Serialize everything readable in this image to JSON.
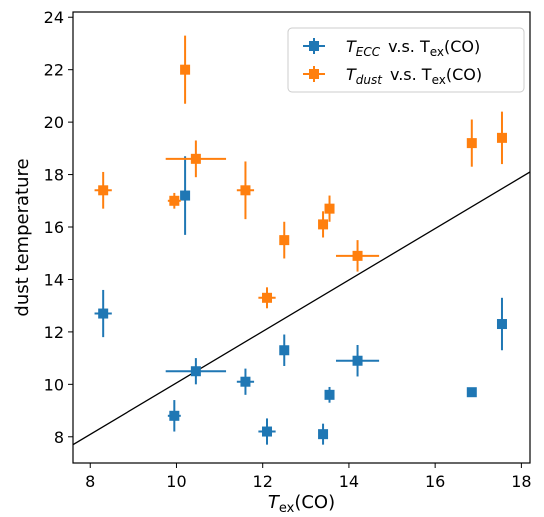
{
  "chart_data": {
    "type": "scatter",
    "xlabel_main": "T",
    "xlabel_sub": "ex",
    "xlabel_tail": "(CO)",
    "ylabel": "dust temperature",
    "xlim": [
      7.6,
      18.2
    ],
    "ylim": [
      7.0,
      24.2
    ],
    "xticks": [
      8,
      10,
      12,
      14,
      16,
      18
    ],
    "yticks": [
      8,
      10,
      12,
      14,
      16,
      18,
      20,
      22,
      24
    ],
    "grid": false,
    "legend_position": "upper-right",
    "reference_line": {
      "points": [
        [
          7.6,
          7.7
        ],
        [
          18.2,
          18.1
        ]
      ],
      "color": "#000000"
    },
    "series": [
      {
        "name": "T_ECC v.s. T_ex(CO)",
        "legend_main": "T",
        "legend_sub": "ECC",
        "legend_tail": "v.s. T",
        "legend_tail_sub": "ex",
        "legend_end": "(CO)",
        "color": "#1f77b4",
        "points": [
          {
            "x": 8.3,
            "y": 12.7,
            "xerr": 0.2,
            "yerr": 0.9
          },
          {
            "x": 9.95,
            "y": 8.8,
            "xerr": 0.15,
            "yerr": 0.6
          },
          {
            "x": 10.2,
            "y": 17.2,
            "xerr": 0.0,
            "yerr": 1.5
          },
          {
            "x": 10.45,
            "y": 10.5,
            "xerr": 0.7,
            "yerr": 0.5
          },
          {
            "x": 11.6,
            "y": 10.1,
            "xerr": 0.2,
            "yerr": 0.5
          },
          {
            "x": 12.1,
            "y": 8.2,
            "xerr": 0.2,
            "yerr": 0.5
          },
          {
            "x": 12.5,
            "y": 11.3,
            "xerr": 0.0,
            "yerr": 0.6
          },
          {
            "x": 13.4,
            "y": 8.1,
            "xerr": 0.1,
            "yerr": 0.4
          },
          {
            "x": 13.55,
            "y": 9.6,
            "xerr": 0.1,
            "yerr": 0.3
          },
          {
            "x": 14.2,
            "y": 10.9,
            "xerr": 0.5,
            "yerr": 0.6
          },
          {
            "x": 16.85,
            "y": 9.7,
            "xerr": 0.0,
            "yerr": 0.0
          },
          {
            "x": 17.55,
            "y": 12.3,
            "xerr": 0.0,
            "yerr": 1.0
          }
        ]
      },
      {
        "name": "T_dust v.s. T_ex(CO)",
        "legend_main": "T",
        "legend_sub": "dust",
        "legend_tail": "v.s. T",
        "legend_tail_sub": "ex",
        "legend_end": "(CO)",
        "color": "#ff7f0e",
        "points": [
          {
            "x": 8.3,
            "y": 17.4,
            "xerr": 0.2,
            "yerr": 0.7
          },
          {
            "x": 9.95,
            "y": 17.0,
            "xerr": 0.15,
            "yerr": 0.3
          },
          {
            "x": 10.2,
            "y": 22.0,
            "xerr": 0.0,
            "yerr": 1.3
          },
          {
            "x": 10.45,
            "y": 18.6,
            "xerr": 0.7,
            "yerr": 0.7
          },
          {
            "x": 11.6,
            "y": 17.4,
            "xerr": 0.2,
            "yerr": 1.1
          },
          {
            "x": 12.1,
            "y": 13.3,
            "xerr": 0.2,
            "yerr": 0.4
          },
          {
            "x": 12.5,
            "y": 15.5,
            "xerr": 0.0,
            "yerr": 0.7
          },
          {
            "x": 13.4,
            "y": 16.1,
            "xerr": 0.1,
            "yerr": 0.5
          },
          {
            "x": 13.55,
            "y": 16.7,
            "xerr": 0.1,
            "yerr": 0.5
          },
          {
            "x": 14.2,
            "y": 14.9,
            "xerr": 0.5,
            "yerr": 0.6
          },
          {
            "x": 16.85,
            "y": 19.2,
            "xerr": 0.0,
            "yerr": 0.9
          },
          {
            "x": 17.55,
            "y": 19.4,
            "xerr": 0.0,
            "yerr": 1.0
          }
        ]
      }
    ]
  }
}
